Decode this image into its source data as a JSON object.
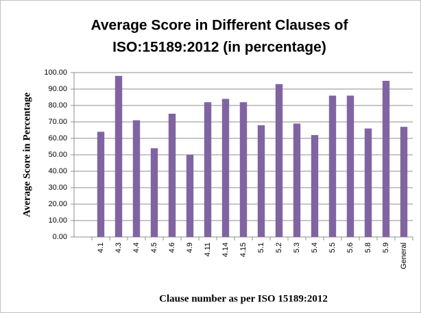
{
  "chart_data": {
    "type": "bar",
    "title": [
      "Average Score  in Different Clauses of",
      "ISO:15189:2012 (in percentage)"
    ],
    "x_label": "Clause number as per ISO 15189:2012",
    "y_label": "Average  Score in Percentage",
    "categories": [
      null,
      "4.1",
      "4.3",
      "4.4",
      "4.5",
      "4.6",
      "4.9",
      "4.11",
      "4.14",
      "4.15",
      "5.1",
      "5.2",
      "5.3",
      "5.4",
      "5.5",
      "5.6",
      "5.8",
      "5.9",
      "General"
    ],
    "values": [
      null,
      64,
      98,
      71,
      54,
      75,
      50,
      82,
      84,
      82,
      68,
      93,
      69,
      62,
      86,
      86,
      66,
      95,
      67
    ],
    "color": "#8064a2",
    "ylim": [
      0,
      100
    ],
    "yticks": [
      {
        "value": 0,
        "label": "0.00"
      },
      {
        "value": 10,
        "label": "10.00"
      },
      {
        "value": 20,
        "label": "20.00"
      },
      {
        "value": 30,
        "label": "30.00"
      },
      {
        "value": 40,
        "label": "40.00"
      },
      {
        "value": 50,
        "label": "50.00"
      },
      {
        "value": 60,
        "label": "60.00"
      },
      {
        "value": 70,
        "label": "70.00"
      },
      {
        "value": 80,
        "label": "80.00"
      },
      {
        "value": 90,
        "label": "90.00"
      },
      {
        "value": 100,
        "label": "100.00"
      }
    ],
    "grid": true
  }
}
